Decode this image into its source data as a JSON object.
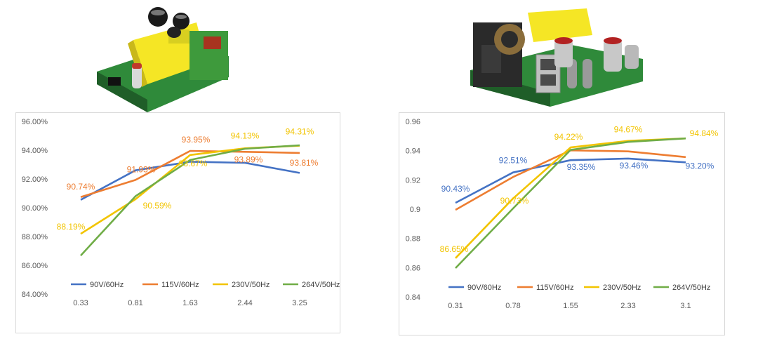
{
  "colors": {
    "90V/60Hz": "#4472c4",
    "115V/60Hz": "#ed7d31",
    "230V/50Hz": "#f2c400",
    "264V/50Hz": "#70ad47"
  },
  "images": {
    "left": "pcb-board-photo-left",
    "right": "usb-charger-pcb-photo-right"
  },
  "chart_data": [
    {
      "type": "line",
      "categories": [
        "0.33",
        "0.81",
        "1.63",
        "2.44",
        "3.25"
      ],
      "ylim": [
        0.84,
        0.96
      ],
      "yticks": [
        0.84,
        0.86,
        0.88,
        0.9,
        0.92,
        0.94,
        0.96
      ],
      "ytick_labels": [
        "84.00%",
        "86.00%",
        "88.00%",
        "90.00%",
        "92.00%",
        "94.00%",
        "96.00%"
      ],
      "grid": false,
      "legend": "bottom",
      "series": [
        {
          "name": "90V/60Hz",
          "values": [
            0.9055,
            0.926,
            0.932,
            0.9312,
            0.9242
          ]
        },
        {
          "name": "115V/60Hz",
          "values": [
            0.9074,
            0.9193,
            0.9395,
            0.9389,
            0.9381
          ]
        },
        {
          "name": "230V/50Hz",
          "values": [
            0.8819,
            0.9059,
            0.9367,
            0.9413,
            0.9431
          ]
        },
        {
          "name": "264V/50Hz",
          "values": [
            0.8668,
            0.908,
            0.9332,
            0.941,
            0.9434
          ]
        }
      ],
      "data_labels": [
        {
          "series": "115V/60Hz",
          "index": 0,
          "text": "90.74%",
          "dx": 0,
          "dy": -11
        },
        {
          "series": "115V/60Hz",
          "index": 1,
          "text": "91.93%",
          "dx": 8,
          "dy": -11
        },
        {
          "series": "115V/60Hz",
          "index": 2,
          "text": "93.95%",
          "dx": 8,
          "dy": -12
        },
        {
          "series": "115V/60Hz",
          "index": 3,
          "text": "93.89%",
          "dx": 5,
          "dy": 15
        },
        {
          "series": "115V/60Hz",
          "index": 4,
          "text": "93.81%",
          "dx": 6,
          "dy": 18
        },
        {
          "series": "230V/50Hz",
          "index": 0,
          "text": "88.19%",
          "dx": -14,
          "dy": -6
        },
        {
          "series": "230V/50Hz",
          "index": 1,
          "text": "90.59%",
          "dx": 31,
          "dy": 13
        },
        {
          "series": "230V/50Hz",
          "index": 2,
          "text": "93.67%",
          "dx": 4,
          "dy": 16
        },
        {
          "series": "230V/50Hz",
          "index": 3,
          "text": "94.13%",
          "dx": 0,
          "dy": -14
        },
        {
          "series": "230V/50Hz",
          "index": 4,
          "text": "94.31%",
          "dx": 0,
          "dy": -16
        }
      ]
    },
    {
      "type": "line",
      "categories": [
        "0.31",
        "0.78",
        "1.55",
        "2.33",
        "3.1"
      ],
      "ylim": [
        0.84,
        0.96
      ],
      "yticks": [
        0.84,
        0.86,
        0.88,
        0.9,
        0.92,
        0.94,
        0.96
      ],
      "ytick_labels": [
        "0.84",
        "0.86",
        "0.88",
        "0.9",
        "0.92",
        "0.94",
        "0.96"
      ],
      "grid": false,
      "legend": "bottom",
      "series": [
        {
          "name": "90V/60Hz",
          "values": [
            0.9043,
            0.9251,
            0.9335,
            0.9346,
            0.932
          ]
        },
        {
          "name": "115V/60Hz",
          "values": [
            0.8995,
            0.922,
            0.9402,
            0.9395,
            0.9356
          ]
        },
        {
          "name": "230V/50Hz",
          "values": [
            0.8665,
            0.9073,
            0.9422,
            0.9467,
            0.9484
          ]
        },
        {
          "name": "264V/50Hz",
          "values": [
            0.8597,
            0.9005,
            0.9405,
            0.946,
            0.9484
          ]
        }
      ],
      "data_labels": [
        {
          "series": "90V/60Hz",
          "index": 0,
          "text": "90.43%",
          "dx": 0,
          "dy": -16
        },
        {
          "series": "90V/60Hz",
          "index": 1,
          "text": "92.51%",
          "dx": 0,
          "dy": -13
        },
        {
          "series": "90V/60Hz",
          "index": 2,
          "text": "93.35%",
          "dx": 15,
          "dy": 14
        },
        {
          "series": "90V/60Hz",
          "index": 3,
          "text": "93.46%",
          "dx": 8,
          "dy": 14
        },
        {
          "series": "90V/60Hz",
          "index": 4,
          "text": "93.20%",
          "dx": 20,
          "dy": 9
        },
        {
          "series": "230V/50Hz",
          "index": 0,
          "text": "86.65%",
          "dx": -2,
          "dy": -9
        },
        {
          "series": "230V/50Hz",
          "index": 1,
          "text": "90.73%",
          "dx": 2,
          "dy": 7
        },
        {
          "series": "230V/50Hz",
          "index": 2,
          "text": "94.22%",
          "dx": -3,
          "dy": -11
        },
        {
          "series": "230V/50Hz",
          "index": 3,
          "text": "94.67%",
          "dx": 0,
          "dy": -12
        },
        {
          "series": "230V/50Hz",
          "index": 4,
          "text": "94.84%",
          "dx": 26,
          "dy": -3
        }
      ]
    }
  ]
}
